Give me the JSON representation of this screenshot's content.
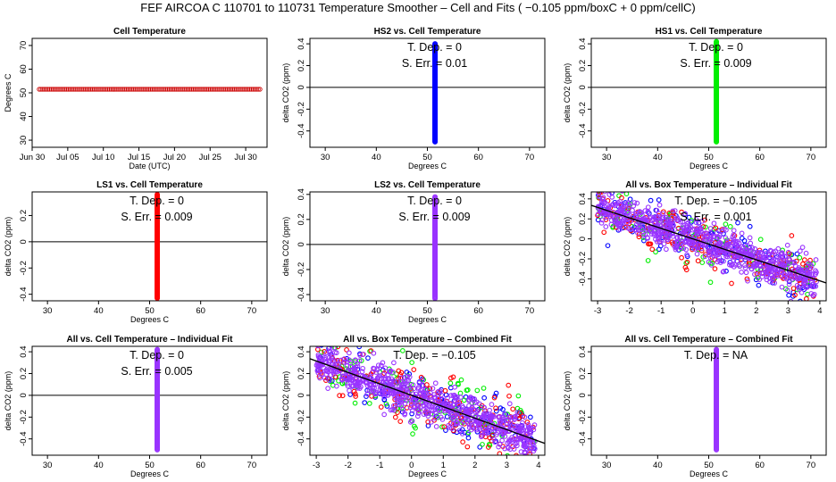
{
  "main_title": "FEF   AIRCOA C   110701 to 110731   Temperature Smoother – Cell and Fits ( −0.105  ppm/boxC +  0  ppm/cellC)",
  "colors": {
    "lo": "#cc0000",
    "blue": "#0000ff",
    "green": "#00ee00",
    "red": "#ff0000",
    "purple": "#9933ff",
    "line": "#000000"
  },
  "chart_data": [
    {
      "id": "p1",
      "type": "scatter",
      "title": "Cell Temperature",
      "xlabel": "Date (UTC)",
      "ylabel": "Degrees C",
      "xlim": [
        0,
        33
      ],
      "ylim": [
        27,
        73
      ],
      "xticks": [
        0,
        5,
        10,
        15,
        20,
        25,
        30
      ],
      "xtick_labels": [
        "Jun 30",
        "Jul 05",
        "Jul 10",
        "Jul 15",
        "Jul 20",
        "Jul 25",
        "Jul 30"
      ],
      "yticks": [
        30,
        40,
        50,
        60,
        70
      ],
      "series": [
        {
          "name": "cell",
          "color": "lo",
          "x_range": [
            1,
            32
          ],
          "y": 51.5
        }
      ]
    },
    {
      "id": "p2",
      "type": "scatter",
      "title": "HS2 vs. Cell Temperature",
      "xlabel": "Degrees C",
      "ylabel": "delta CO2 (ppm)",
      "xlim": [
        27,
        73
      ],
      "ylim": [
        -0.55,
        0.45
      ],
      "xticks": [
        30,
        40,
        50,
        60,
        70
      ],
      "yticks": [
        -0.4,
        -0.2,
        0.0,
        0.2,
        0.4
      ],
      "hline": 0,
      "annotations": [
        "T. Dep. =  0",
        "S. Err. =  0.01"
      ],
      "series": [
        {
          "name": "HS2",
          "color": "blue",
          "x": 51.5,
          "y_range": [
            -0.5,
            0.4
          ]
        }
      ]
    },
    {
      "id": "p3",
      "type": "scatter",
      "title": "HS1 vs. Cell Temperature",
      "xlabel": "Degrees C",
      "ylabel": "delta CO2 (ppm)",
      "xlim": [
        27,
        73
      ],
      "ylim": [
        -0.55,
        0.45
      ],
      "xticks": [
        30,
        40,
        50,
        60,
        70
      ],
      "yticks": [
        -0.4,
        -0.2,
        0.0,
        0.2,
        0.4
      ],
      "hline": 0,
      "annotations": [
        "T. Dep. =  0",
        "S. Err. =  0.009"
      ],
      "series": [
        {
          "name": "HS1",
          "color": "green",
          "x": 51.5,
          "y_range": [
            -0.5,
            0.42
          ]
        }
      ]
    },
    {
      "id": "p4",
      "type": "scatter",
      "title": "LS1 vs. Cell Temperature",
      "xlabel": "Degrees C",
      "ylabel": "delta CO2 (ppm)",
      "xlim": [
        27,
        73
      ],
      "ylim": [
        -0.45,
        0.38
      ],
      "xticks": [
        30,
        40,
        50,
        60,
        70
      ],
      "yticks": [
        -0.4,
        -0.2,
        0.0,
        0.2
      ],
      "hline": 0,
      "annotations": [
        "T. Dep. =  0",
        "S. Err. =  0.009"
      ],
      "series": [
        {
          "name": "LS1",
          "color": "red",
          "x": 51.5,
          "y_range": [
            -0.43,
            0.36
          ]
        }
      ]
    },
    {
      "id": "p5",
      "type": "scatter",
      "title": "LS2 vs. Cell Temperature",
      "xlabel": "Degrees C",
      "ylabel": "delta CO2 (ppm)",
      "xlim": [
        27,
        73
      ],
      "ylim": [
        -0.45,
        0.42
      ],
      "xticks": [
        30,
        40,
        50,
        60,
        70
      ],
      "yticks": [
        -0.4,
        -0.2,
        0.0,
        0.2,
        0.4
      ],
      "hline": 0,
      "annotations": [
        "T. Dep. =  0",
        "S. Err. =  0.009"
      ],
      "series": [
        {
          "name": "LS2",
          "color": "purple",
          "x": 51.5,
          "y_range": [
            -0.43,
            0.38
          ]
        }
      ]
    },
    {
      "id": "p6",
      "type": "scatter",
      "title": "All vs. Box Temperature – Individual Fit",
      "xlabel": "",
      "ylabel": "delta CO2 (ppm)",
      "xlim": [
        -3.2,
        4.2
      ],
      "ylim": [
        -0.62,
        0.47
      ],
      "xticks": [
        -3,
        -2,
        -1,
        0,
        1,
        2,
        3,
        4
      ],
      "yticks": [
        -0.4,
        -0.2,
        0.0,
        0.2,
        0.4
      ],
      "fit": {
        "slope": -0.105,
        "intercept": 0.0
      },
      "annotations": [
        "T. Dep. =  −0.105",
        "S. Err. =  0.001"
      ],
      "cloud": {
        "x_range": [
          -3,
          3.9
        ],
        "slope": -0.105,
        "spread": 0.12
      }
    },
    {
      "id": "p7",
      "type": "scatter",
      "title": "All vs. Cell Temperature – Individual Fit",
      "xlabel": "Degrees C",
      "ylabel": "delta CO2 (ppm)",
      "xlim": [
        27,
        73
      ],
      "ylim": [
        -0.55,
        0.45
      ],
      "xticks": [
        30,
        40,
        50,
        60,
        70
      ],
      "yticks": [
        -0.4,
        -0.2,
        0.0,
        0.2,
        0.4
      ],
      "hline": 0,
      "annotations": [
        "T. Dep. =  0",
        "S. Err. =  0.005"
      ],
      "series": [
        {
          "name": "All",
          "color": "purple",
          "x": 51.5,
          "y_range": [
            -0.5,
            0.42
          ]
        }
      ]
    },
    {
      "id": "p8",
      "type": "scatter",
      "title": "All vs. Box Temperature – Combined Fit",
      "xlabel": "Degrees C",
      "ylabel": "delta CO2 (ppm)",
      "xlim": [
        -3.2,
        4.2
      ],
      "ylim": [
        -0.55,
        0.45
      ],
      "xticks": [
        -3,
        -2,
        -1,
        0,
        1,
        2,
        3,
        4
      ],
      "yticks": [
        -0.4,
        -0.2,
        0.0,
        0.2,
        0.4
      ],
      "fit": {
        "slope": -0.105,
        "intercept": 0.0
      },
      "annotations": [
        "T. Dep. =  −0.105"
      ],
      "cloud": {
        "x_range": [
          -3,
          3.9
        ],
        "slope": -0.105,
        "spread": 0.12
      }
    },
    {
      "id": "p9",
      "type": "scatter",
      "title": "All vs. Cell Temperature – Combined Fit",
      "xlabel": "Degrees C",
      "ylabel": "delta CO2 (ppm)",
      "xlim": [
        27,
        73
      ],
      "ylim": [
        -0.55,
        0.45
      ],
      "xticks": [
        30,
        40,
        50,
        60,
        70
      ],
      "yticks": [
        -0.4,
        -0.2,
        0.0,
        0.2,
        0.4
      ],
      "annotations": [
        "T. Dep. =  NA"
      ],
      "series": [
        {
          "name": "All",
          "color": "purple",
          "x": 51.5,
          "y_range": [
            -0.5,
            0.42
          ]
        }
      ]
    }
  ]
}
